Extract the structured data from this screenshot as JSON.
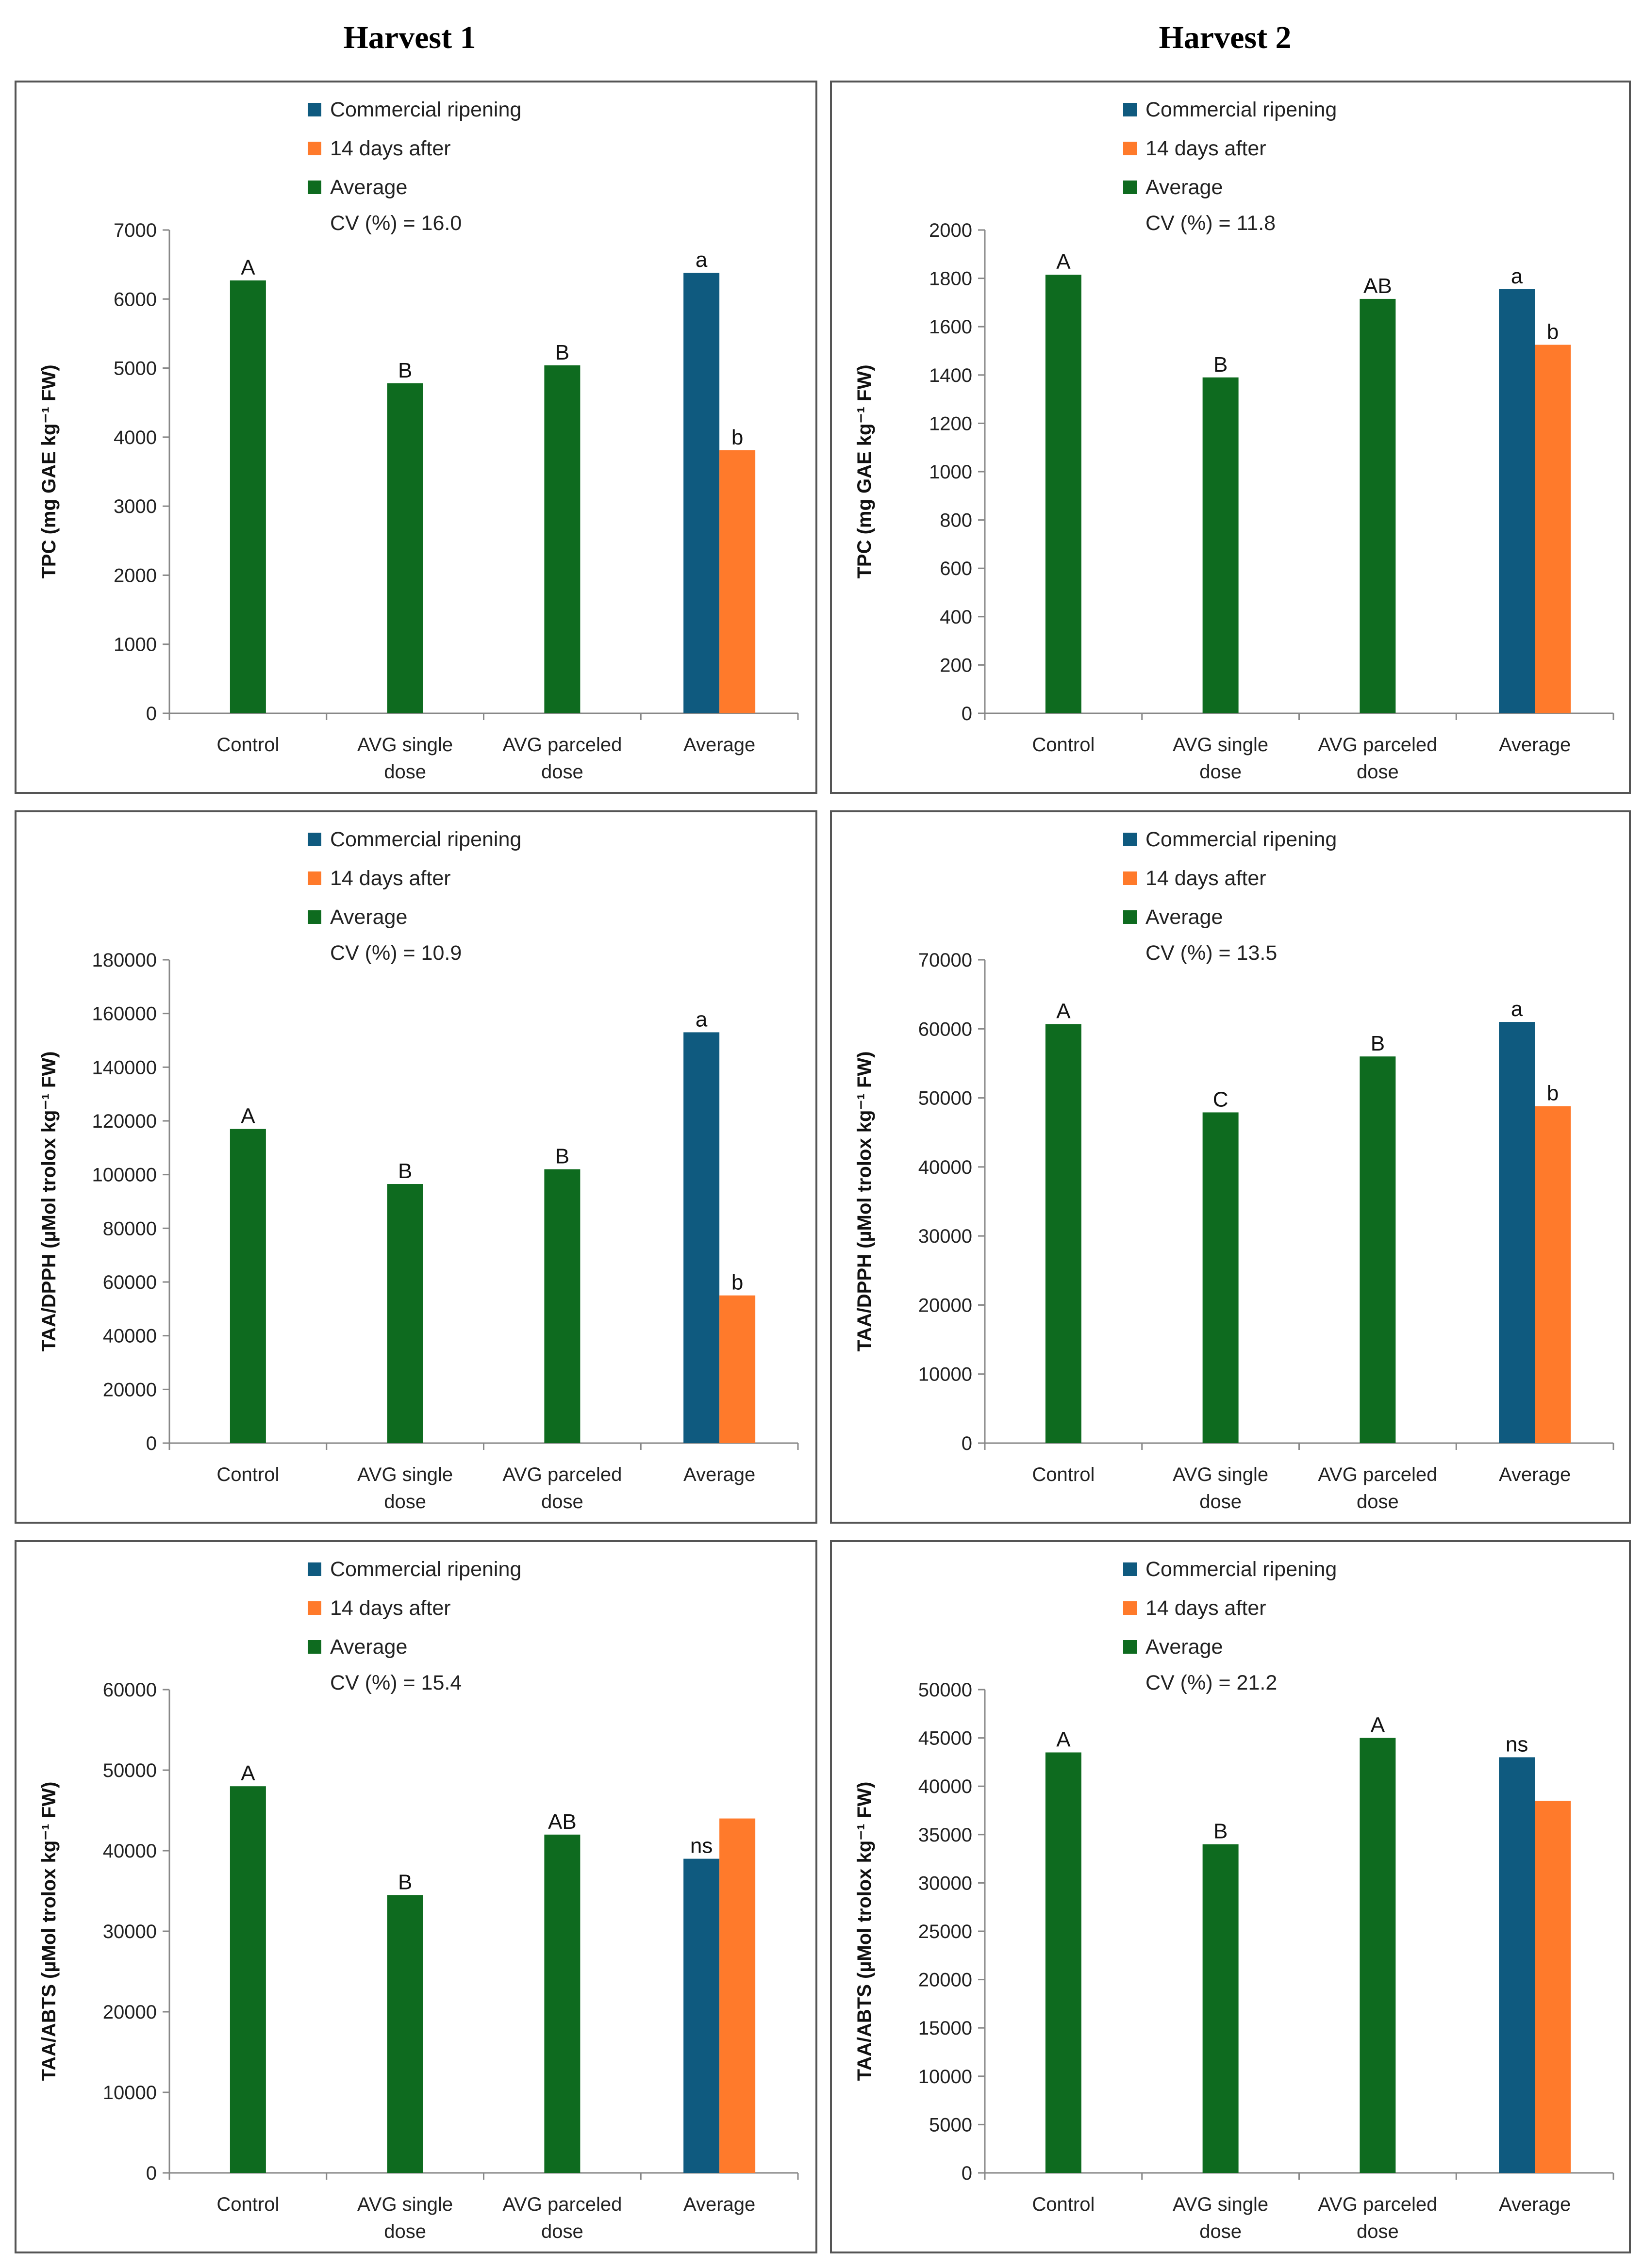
{
  "columns": [
    "Harvest 1",
    "Harvest 2"
  ],
  "colors": {
    "commercial": "#0f5a7f",
    "after": "#ff7a2b",
    "average": "#0e6b1f"
  },
  "chart_data": [
    {
      "id": "tpc-h1",
      "type": "bar",
      "harvest": "Harvest 1",
      "ylabel": "TPC (mg GAE kg⁻¹ FW)",
      "ylim": [
        0,
        7000
      ],
      "yticks": [
        0,
        1000,
        2000,
        3000,
        4000,
        5000,
        6000,
        7000
      ],
      "legend": [
        "Commercial ripening",
        "14 days after",
        "Average"
      ],
      "cv": "CV (%) = 16.0",
      "categories": [
        [
          "Control"
        ],
        [
          "AVG single",
          "dose"
        ],
        [
          "AVG parceled",
          "dose"
        ],
        [
          "Average"
        ]
      ],
      "treatments": [
        {
          "value": 6270,
          "letter": "A"
        },
        {
          "value": 4780,
          "letter": "B"
        },
        {
          "value": 5040,
          "letter": "B"
        }
      ],
      "average": {
        "commercial": 6380,
        "after": 3810,
        "letter_commercial": "a",
        "letter_after": "b"
      }
    },
    {
      "id": "tpc-h2",
      "type": "bar",
      "harvest": "Harvest 2",
      "ylabel": "TPC (mg GAE kg⁻¹ FW)",
      "ylim": [
        0,
        2000
      ],
      "yticks": [
        0,
        200,
        400,
        600,
        800,
        1000,
        1200,
        1400,
        1600,
        1800,
        2000
      ],
      "legend": [
        "Commercial ripening",
        "14 days after",
        "Average"
      ],
      "cv": "CV (%) = 11.8",
      "categories": [
        [
          "Control"
        ],
        [
          "AVG single",
          "dose"
        ],
        [
          "AVG parceled",
          "dose"
        ],
        [
          "Average"
        ]
      ],
      "treatments": [
        {
          "value": 1815,
          "letter": "A"
        },
        {
          "value": 1390,
          "letter": "B"
        },
        {
          "value": 1715,
          "letter": "AB"
        }
      ],
      "average": {
        "commercial": 1755,
        "after": 1525,
        "letter_commercial": "a",
        "letter_after": "b"
      }
    },
    {
      "id": "dpph-h1",
      "type": "bar",
      "harvest": "Harvest 1",
      "ylabel": "TAA/DPPH (µMol trolox kg⁻¹ FW)",
      "ylim": [
        0,
        180000
      ],
      "yticks": [
        0,
        20000,
        40000,
        60000,
        80000,
        100000,
        120000,
        140000,
        160000,
        180000
      ],
      "legend": [
        "Commercial ripening",
        "14 days after",
        "Average"
      ],
      "cv": "CV (%) = 10.9",
      "categories": [
        [
          "Control"
        ],
        [
          "AVG single",
          "dose"
        ],
        [
          "AVG parceled",
          "dose"
        ],
        [
          "Average"
        ]
      ],
      "treatments": [
        {
          "value": 117000,
          "letter": "A"
        },
        {
          "value": 96500,
          "letter": "B"
        },
        {
          "value": 102000,
          "letter": "B"
        }
      ],
      "average": {
        "commercial": 153000,
        "after": 55000,
        "letter_commercial": "a",
        "letter_after": "b"
      }
    },
    {
      "id": "dpph-h2",
      "type": "bar",
      "harvest": "Harvest 2",
      "ylabel": "TAA/DPPH (µMol trolox kg⁻¹ FW)",
      "ylim": [
        0,
        70000
      ],
      "yticks": [
        0,
        10000,
        20000,
        30000,
        40000,
        50000,
        60000,
        70000
      ],
      "legend": [
        "Commercial ripening",
        "14 days after",
        "Average"
      ],
      "cv": "CV (%) = 13.5",
      "categories": [
        [
          "Control"
        ],
        [
          "AVG single",
          "dose"
        ],
        [
          "AVG parceled",
          "dose"
        ],
        [
          "Average"
        ]
      ],
      "treatments": [
        {
          "value": 60700,
          "letter": "A"
        },
        {
          "value": 47900,
          "letter": "C"
        },
        {
          "value": 56000,
          "letter": "B"
        }
      ],
      "average": {
        "commercial": 61000,
        "after": 48800,
        "letter_commercial": "a",
        "letter_after": "b"
      }
    },
    {
      "id": "abts-h1",
      "type": "bar",
      "harvest": "Harvest 1",
      "ylabel": "TAA/ABTS (µMol trolox kg⁻¹ FW)",
      "ylim": [
        0,
        60000
      ],
      "yticks": [
        0,
        10000,
        20000,
        30000,
        40000,
        50000,
        60000
      ],
      "legend": [
        "Commercial ripening",
        "14 days after",
        "Average"
      ],
      "cv": "CV (%) = 15.4",
      "categories": [
        [
          "Control"
        ],
        [
          "AVG single",
          "dose"
        ],
        [
          "AVG parceled",
          "dose"
        ],
        [
          "Average"
        ]
      ],
      "treatments": [
        {
          "value": 48000,
          "letter": "A"
        },
        {
          "value": 34500,
          "letter": "B"
        },
        {
          "value": 42000,
          "letter": "AB"
        }
      ],
      "average": {
        "commercial": 39000,
        "after": 44000,
        "letter_commercial": "ns",
        "letter_after": ""
      }
    },
    {
      "id": "abts-h2",
      "type": "bar",
      "harvest": "Harvest 2",
      "ylabel": "TAA/ABTS (µMol trolox kg⁻¹ FW)",
      "ylim": [
        0,
        50000
      ],
      "yticks": [
        0,
        5000,
        10000,
        15000,
        20000,
        25000,
        30000,
        35000,
        40000,
        45000,
        50000
      ],
      "legend": [
        "Commercial ripening",
        "14 days after",
        "Average"
      ],
      "cv": "CV (%) = 21.2",
      "categories": [
        [
          "Control"
        ],
        [
          "AVG single",
          "dose"
        ],
        [
          "AVG parceled",
          "dose"
        ],
        [
          "Average"
        ]
      ],
      "treatments": [
        {
          "value": 43500,
          "letter": "A"
        },
        {
          "value": 34000,
          "letter": "B"
        },
        {
          "value": 45000,
          "letter": "A"
        }
      ],
      "average": {
        "commercial": 43000,
        "after": 38500,
        "letter_commercial": "ns",
        "letter_after": ""
      }
    }
  ]
}
